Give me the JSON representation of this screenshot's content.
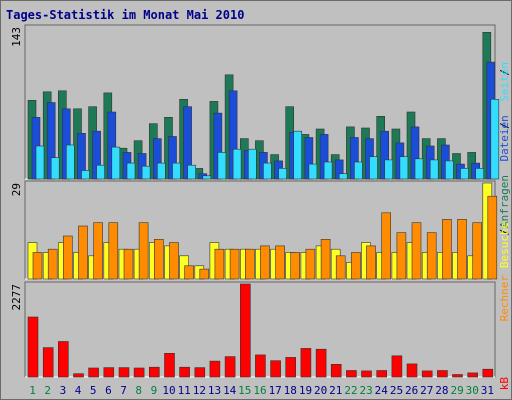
{
  "title": "Tages-Statistik im Monat Mai 2010",
  "chart_data": [
    {
      "type": "bar",
      "panel": "top",
      "y_max_label": "143",
      "ylim": [
        0,
        143
      ],
      "categories": [
        "1",
        "2",
        "3",
        "4",
        "5",
        "6",
        "7",
        "8",
        "9",
        "10",
        "11",
        "12",
        "13",
        "14",
        "15",
        "16",
        "17",
        "18",
        "19",
        "20",
        "21",
        "22",
        "23",
        "24",
        "25",
        "26",
        "27",
        "28",
        "29",
        "30",
        "31"
      ],
      "series": [
        {
          "name": "Anfragen",
          "color": "#1e7a56",
          "values": [
            74,
            82,
            83,
            66,
            68,
            81,
            29,
            36,
            52,
            58,
            75,
            10,
            73,
            98,
            38,
            36,
            23,
            68,
            42,
            47,
            23,
            49,
            48,
            59,
            47,
            63,
            38,
            38,
            24,
            25,
            138
          ]
        },
        {
          "name": "Dateien",
          "color": "#1a4ed8",
          "values": [
            58,
            72,
            66,
            43,
            45,
            63,
            25,
            24,
            38,
            40,
            68,
            5,
            62,
            83,
            27,
            25,
            17,
            44,
            39,
            42,
            18,
            39,
            38,
            45,
            34,
            49,
            31,
            32,
            14,
            15,
            110
          ]
        },
        {
          "name": "Seiten",
          "color": "#33ddff",
          "values": [
            31,
            20,
            32,
            8,
            13,
            30,
            15,
            12,
            15,
            15,
            13,
            3,
            25,
            28,
            28,
            15,
            10,
            45,
            14,
            16,
            5,
            16,
            21,
            18,
            21,
            19,
            18,
            17,
            10,
            10,
            75
          ]
        }
      ],
      "right_labels": [
        "Anfragen",
        "Dateien",
        "Seiten"
      ]
    },
    {
      "type": "bar",
      "panel": "middle",
      "y_max_label": "29",
      "ylim": [
        0,
        29
      ],
      "categories": [
        "1",
        "2",
        "3",
        "4",
        "5",
        "6",
        "7",
        "8",
        "9",
        "10",
        "11",
        "12",
        "13",
        "14",
        "15",
        "16",
        "17",
        "18",
        "19",
        "20",
        "21",
        "22",
        "23",
        "24",
        "25",
        "26",
        "27",
        "28",
        "29",
        "30",
        "31"
      ],
      "series": [
        {
          "name": "Besuche",
          "color": "#ffff22",
          "values": [
            11,
            8,
            11,
            8,
            7,
            11,
            9,
            9,
            11,
            10,
            7,
            4,
            11,
            9,
            9,
            9,
            9,
            8,
            8,
            10,
            9,
            5,
            11,
            8,
            8,
            11,
            8,
            8,
            8,
            7,
            29
          ]
        },
        {
          "name": "Rechner",
          "color": "#ff8c00",
          "values": [
            8,
            9,
            13,
            16,
            17,
            17,
            9,
            17,
            12,
            11,
            4,
            3,
            9,
            9,
            9,
            10,
            10,
            8,
            9,
            12,
            7,
            8,
            10,
            20,
            14,
            17,
            14,
            18,
            18,
            17,
            25
          ]
        }
      ],
      "right_labels": [
        "Rechner",
        "Besuche"
      ]
    },
    {
      "type": "bar",
      "panel": "bottom",
      "y_max_label": "2277",
      "ylim": [
        0,
        2277
      ],
      "categories": [
        "1",
        "2",
        "3",
        "4",
        "5",
        "6",
        "7",
        "8",
        "9",
        "10",
        "11",
        "12",
        "13",
        "14",
        "15",
        "16",
        "17",
        "18",
        "19",
        "20",
        "21",
        "22",
        "23",
        "24",
        "25",
        "26",
        "27",
        "28",
        "29",
        "30",
        "31"
      ],
      "series": [
        {
          "name": "kB",
          "color": "#ff0000",
          "values": [
            1470,
            720,
            870,
            80,
            220,
            230,
            230,
            220,
            240,
            580,
            240,
            230,
            390,
            500,
            2277,
            540,
            400,
            480,
            700,
            680,
            310,
            160,
            150,
            160,
            520,
            320,
            150,
            160,
            60,
            100,
            190
          ]
        }
      ],
      "right_labels": [
        "kB"
      ]
    }
  ],
  "x_axis": {
    "labels": [
      "1",
      "2",
      "3",
      "4",
      "5",
      "6",
      "7",
      "8",
      "9",
      "10",
      "11",
      "12",
      "13",
      "14",
      "15",
      "16",
      "17",
      "18",
      "19",
      "20",
      "21",
      "22",
      "23",
      "24",
      "25",
      "26",
      "27",
      "28",
      "29",
      "30",
      "31"
    ],
    "weekend_color": "#00803c",
    "weekday_color": "#00008b",
    "weekend_days": [
      1,
      2,
      8,
      9,
      15,
      16,
      22,
      23,
      29,
      30
    ]
  }
}
